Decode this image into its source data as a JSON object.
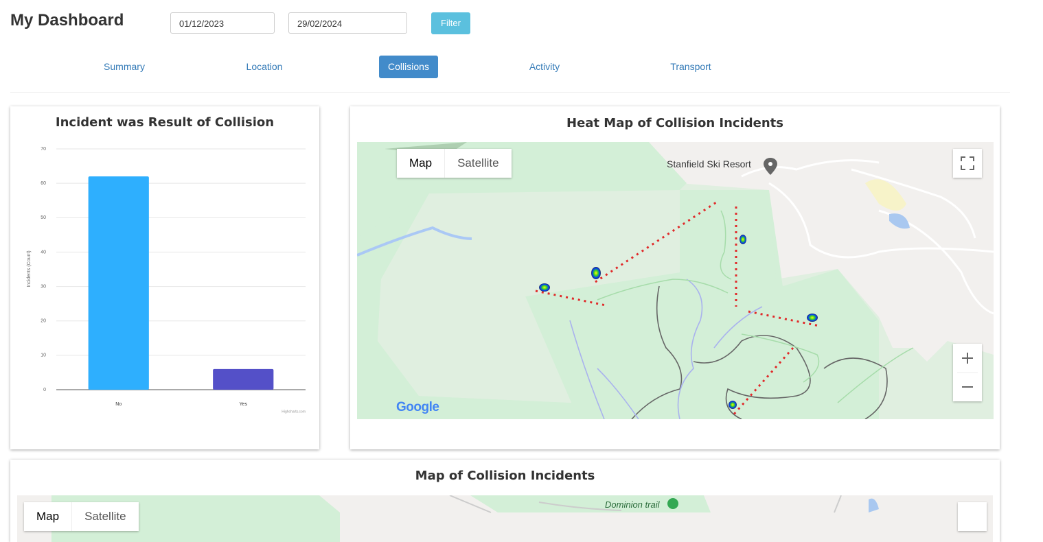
{
  "header": {
    "title": "My Dashboard",
    "start_date": "01/12/2023",
    "end_date": "29/02/2024",
    "filter_button": "Filter"
  },
  "tabs": [
    "Summary",
    "Location",
    "Collisions",
    "Activity",
    "Transport"
  ],
  "active_tab": 2,
  "chart_data": {
    "type": "bar",
    "title": "Incident was Result of Collision",
    "y_axis_label": "Incidents (Count)",
    "categories": [
      "No",
      "Yes"
    ],
    "values": [
      62,
      6
    ],
    "colors": [
      "#2eaffe",
      "#5450c8"
    ],
    "ylim": [
      0,
      70
    ],
    "yticks": [
      0,
      10,
      20,
      30,
      40,
      50,
      60,
      70
    ],
    "grid": true,
    "credit": "Highcharts.com"
  },
  "heat_map": {
    "title": "Heat Map of Collision Incidents",
    "map_type_buttons": [
      "Map",
      "Satellite"
    ],
    "place_label": "Stanfield Ski Resort",
    "logo": "Google"
  },
  "collision_map": {
    "title": "Map of Collision Incidents",
    "map_type_buttons": [
      "Map",
      "Satellite"
    ],
    "trail_label": "Dominion trail"
  }
}
